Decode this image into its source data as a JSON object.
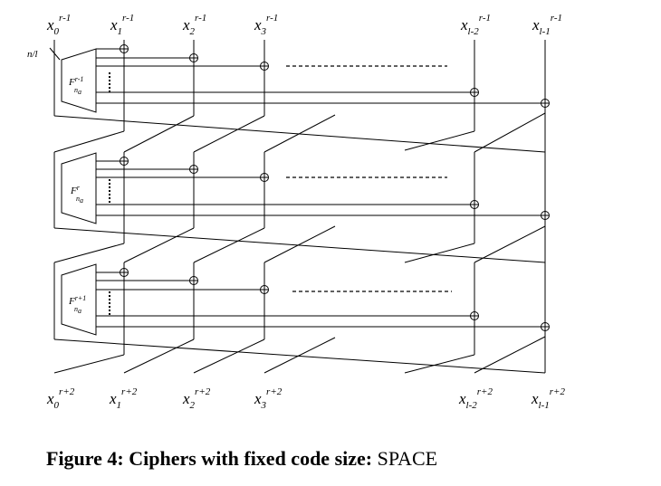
{
  "top_labels": [
    {
      "base": "x",
      "sub": "0",
      "sup": "r-1"
    },
    {
      "base": "x",
      "sub": "1",
      "sup": "r-1"
    },
    {
      "base": "x",
      "sub": "2",
      "sup": "r-1"
    },
    {
      "base": "x",
      "sub": "3",
      "sup": "r-1"
    },
    {
      "base": "x",
      "sub": "l-2",
      "sup": "r-1"
    },
    {
      "base": "x",
      "sub": "l-1",
      "sup": "r-1"
    }
  ],
  "bottom_labels": [
    {
      "base": "x",
      "sub": "0",
      "sup": "r+2"
    },
    {
      "base": "x",
      "sub": "1",
      "sup": "r+2"
    },
    {
      "base": "x",
      "sub": "2",
      "sup": "r+2"
    },
    {
      "base": "x",
      "sub": "3",
      "sup": "r+2"
    },
    {
      "base": "x",
      "sub": "l-2",
      "sup": "r+2"
    },
    {
      "base": "x",
      "sub": "l-1",
      "sup": "r+2"
    }
  ],
  "width_label": "n/l",
  "rounds": [
    {
      "f": "F",
      "sup": "r-1",
      "sub": "n"
    },
    {
      "f": "F",
      "sup": "r",
      "sub": "n"
    },
    {
      "f": "F",
      "sup": "r+1",
      "sub": "n"
    }
  ],
  "f_sub_sub": "a",
  "caption": {
    "prefix": "Figure 4: Ciphers with fixed code size: ",
    "suffix": "SPACE"
  }
}
